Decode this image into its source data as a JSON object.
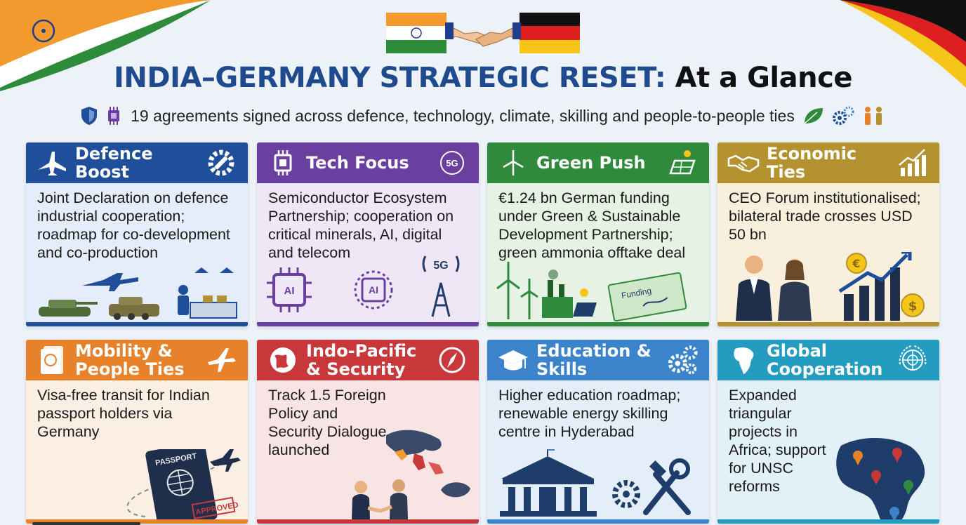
{
  "header": {
    "title_main": "INDIA–GERMANY STRATEGIC RESET:",
    "title_sub": "At a Glance",
    "subtitle": "19 agreements signed across defence, technology, climate, skilling and people-to-people ties"
  },
  "colors": {
    "title_blue": "#1f4a8e",
    "india_saffron": "#f29a2e",
    "india_green": "#2e8b3a",
    "germany_black": "#111111",
    "germany_red": "#dd1f1f",
    "germany_gold": "#f5c518"
  },
  "icons": {
    "subtitle_left": [
      "shield-icon",
      "chip-icon"
    ],
    "subtitle_right": [
      "leaf-icon",
      "gears-icon",
      "people-icon"
    ]
  },
  "cards": [
    {
      "title": "Defence Boost",
      "text": "Joint Declaration on defence industrial cooperation; roadmap for co-development and co-production",
      "icon": "fighter-jet-icon",
      "right_icon": "gear-wrench-icon"
    },
    {
      "title": "Tech Focus",
      "text": "Semiconductor Ecosystem Partnership; cooperation on critical minerals, AI, digital and telecom",
      "icon": "chip-icon",
      "right_icon": "5g-icon",
      "badge_5g": "5G",
      "illus_ai_1": "AI",
      "illus_ai_2": "AI",
      "illus_5g": "5G"
    },
    {
      "title": "Green Push",
      "text": "€1.24 bn German funding under Green & Sustainable Development Partnership; green ammonia offtake deal",
      "icon": "wind-turbine-icon",
      "right_icon": "solar-panel-icon",
      "cheque_label": "Funding"
    },
    {
      "title": "Economic Ties",
      "text": "CEO Forum institutionalised; bilateral trade crosses USD 50 bn",
      "icon": "handshake-icon",
      "right_icon": "growth-chart-icon"
    },
    {
      "title": "Mobility & People Ties",
      "text": "Visa-free transit for Indian passport holders via Germany",
      "icon": "passport-icon",
      "right_icon": "airplane-icon",
      "passport_label": "PASSPORT",
      "stamp_label": "APPROVED"
    },
    {
      "title": "Indo-Pacific & Security",
      "text": "Track 1.5 Foreign Policy and Security Dialogue launched",
      "icon": "globe-icon",
      "right_icon": "compass-icon"
    },
    {
      "title": "Education & Skills",
      "text": "Higher education roadmap; renewable energy skilling centre in Hyderabad",
      "icon": "graduation-cap-icon",
      "right_icon": "gears-icon"
    },
    {
      "title": "Global Cooperation",
      "text": "Expanded triangular projects in Africa; support for UNSC reforms",
      "icon": "africa-icon",
      "right_icon": "un-emblem-icon"
    }
  ]
}
